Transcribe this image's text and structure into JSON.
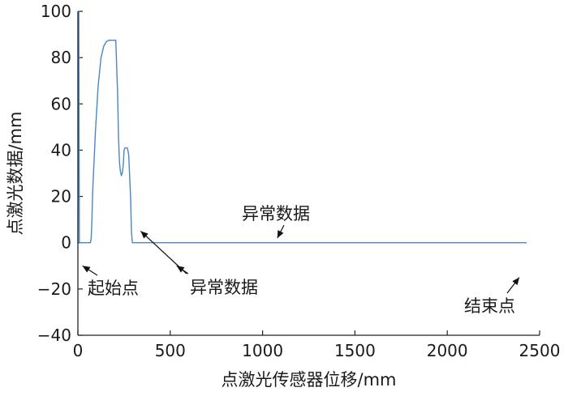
{
  "chart_data": {
    "type": "line",
    "xlabel": "点激光传感器位移/mm",
    "ylabel": "点激光数据/mm",
    "xlim": [
      0,
      2500
    ],
    "ylim": [
      -40,
      100
    ],
    "x_ticks": [
      0,
      500,
      1000,
      1500,
      2000,
      2500
    ],
    "y_ticks": [
      -40,
      -20,
      0,
      20,
      40,
      60,
      80,
      100
    ],
    "x_tick_labels": [
      "0",
      "500",
      "1000",
      "1500",
      "2000",
      "2500"
    ],
    "y_tick_labels": [
      "−40",
      "−20",
      "0",
      "20",
      "40",
      "60",
      "80",
      "100"
    ],
    "grid": false,
    "line_color": "#4a86c0",
    "series": [
      {
        "x": [
          0,
          4,
          5,
          8,
          10,
          60,
          68,
          72,
          76,
          80,
          95,
          110,
          125,
          140,
          155,
          170,
          185,
          195,
          205,
          215,
          220,
          225,
          230,
          235,
          240,
          245,
          250,
          255,
          258,
          261,
          264,
          267,
          270,
          275,
          285,
          290,
          295,
          300,
          305,
          308,
          312,
          316,
          320,
          325,
          330,
          520,
          524,
          526,
          528,
          530,
          532,
          534,
          536,
          540,
          545,
          555,
          560,
          562,
          564,
          566,
          570,
          575,
          580,
          588,
          592,
          596,
          600,
          603,
          606,
          610,
          615,
          625,
          635,
          645,
          660,
          675,
          690,
          705,
          720,
          735,
          742,
          745,
          760,
          1075,
          1078,
          1080,
          1082,
          1084,
          1086,
          1250,
          1252,
          1254,
          1256,
          1590,
          1595,
          1610,
          1625,
          1640,
          1655,
          1670,
          1685,
          1700,
          1715,
          1725,
          1730,
          1735,
          1740,
          1745,
          1750,
          1755,
          1760,
          1762,
          1765,
          1768,
          1772,
          1776,
          1780,
          1785,
          1790,
          1792,
          1794,
          1796,
          1800,
          1803,
          1806,
          1809,
          1812,
          1815,
          1820,
          2025,
          2028,
          2030,
          2032,
          2034,
          2036,
          2040,
          2044,
          2046,
          2048,
          2052,
          2058,
          2066,
          2070,
          2074,
          2076,
          2078,
          2080,
          2085,
          2090,
          2095,
          2100,
          2105,
          2110,
          2115,
          2120,
          2130,
          2140,
          2150,
          2160,
          2170,
          2180,
          2190,
          2200,
          2210,
          2220,
          2230,
          2240,
          2250,
          2255,
          2260,
          2263,
          2266,
          2270,
          2400,
          2405,
          2408,
          2410,
          2412,
          2415,
          2420,
          2430
        ],
        "y": [
          0,
          100,
          100,
          0,
          0,
          0,
          0,
          2,
          10,
          22,
          48,
          68,
          80,
          85,
          87,
          87.5,
          87.5,
          87.5,
          87.5,
          65,
          45,
          35,
          31,
          29,
          30,
          33,
          40,
          41,
          41,
          41,
          41,
          41,
          40,
          38,
          20,
          5,
          0,
          0,
          0,
          0,
          0,
          0,
          0,
          0,
          0,
          0,
          0,
          0,
          0,
          0,
          0,
          0,
          0,
          0,
          0,
          0,
          0,
          0,
          0,
          0,
          0,
          0,
          0,
          0,
          0,
          0,
          0,
          0,
          0,
          0,
          0,
          0,
          0,
          0,
          0,
          0,
          0,
          0,
          0,
          0,
          0,
          0,
          0,
          0,
          0,
          0,
          0,
          0,
          0,
          0,
          0,
          0,
          0,
          0,
          0,
          0,
          0,
          0,
          0,
          0,
          0,
          0,
          0,
          0,
          0,
          0,
          0,
          0,
          0,
          0,
          0,
          0,
          0,
          0,
          0,
          0,
          0,
          0,
          0,
          0,
          0,
          0,
          0,
          0,
          0,
          0,
          0,
          0,
          0,
          0,
          0,
          0,
          0,
          0,
          0,
          0,
          0,
          0,
          0,
          0,
          0,
          0,
          0,
          0,
          0,
          0,
          0,
          0,
          0,
          0,
          0,
          0,
          0,
          0,
          0,
          0,
          0,
          0,
          0,
          0,
          0,
          0,
          0,
          0,
          0,
          0,
          0,
          0,
          0,
          0,
          0,
          0,
          0,
          0,
          0,
          0,
          0,
          0,
          0,
          0,
          0
        ]
      }
    ],
    "annotations": [
      {
        "text": "起始点",
        "tip_x": 25,
        "tip_y": -10
      },
      {
        "text": "异常数据",
        "tip_x": 340,
        "tip_y": 5
      },
      {
        "text": "异常数据",
        "tip_x": 1080,
        "tip_y": 2
      },
      {
        "text": "结束点",
        "tip_x": 2390,
        "tip_y": -15
      }
    ]
  }
}
